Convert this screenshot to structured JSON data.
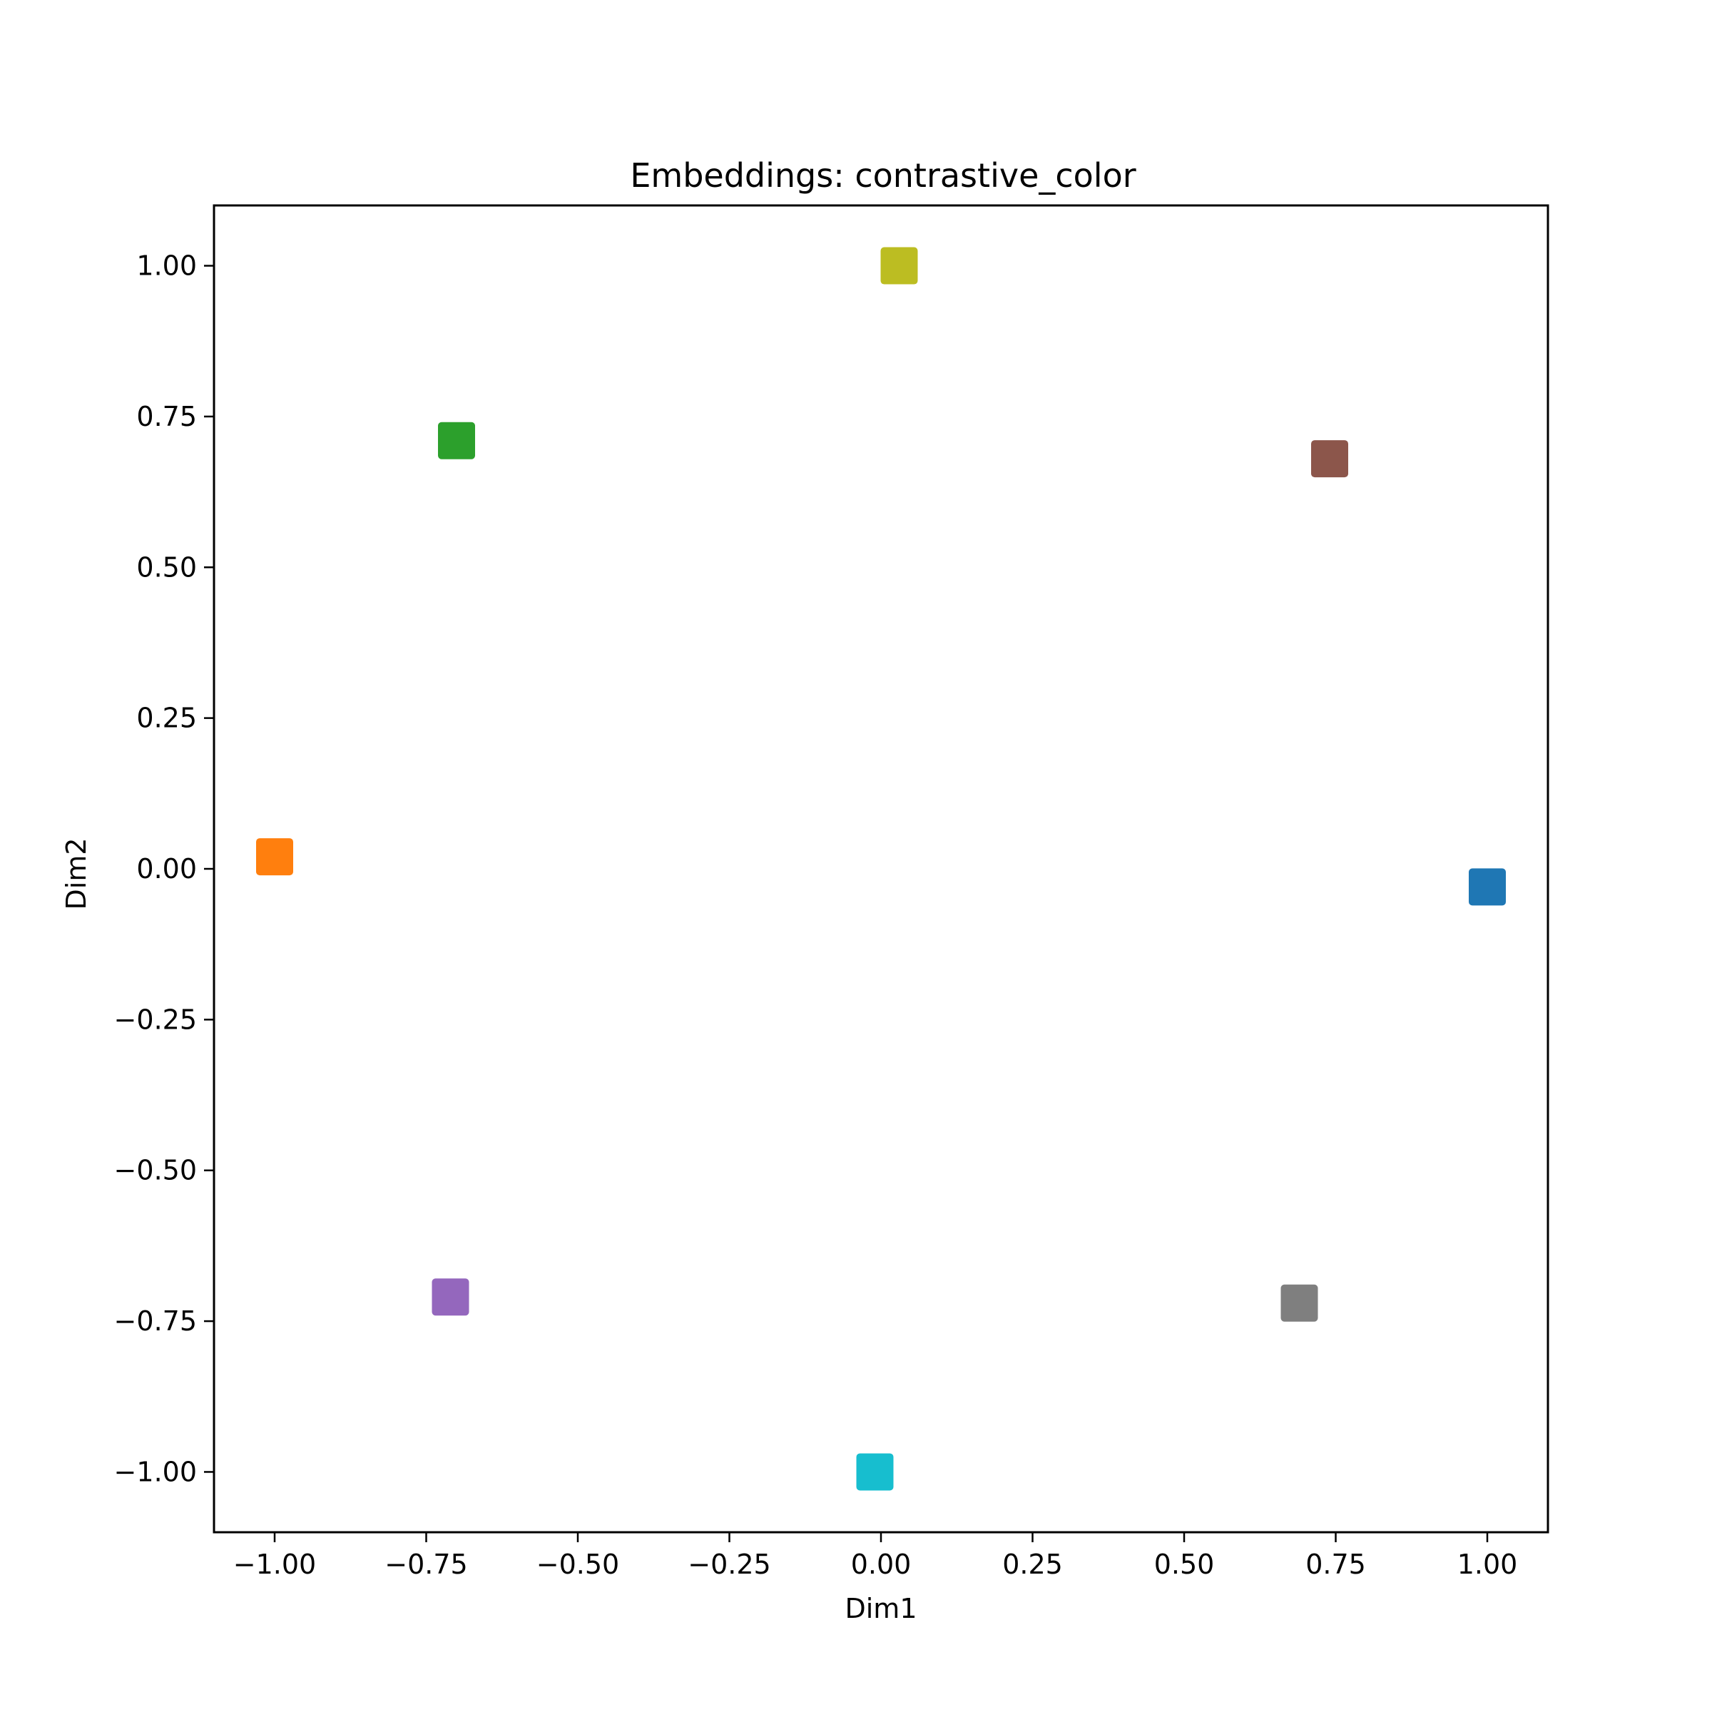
{
  "chart_data": {
    "type": "scatter",
    "title": "Embeddings: contrastive_color",
    "xlabel": "Dim1",
    "ylabel": "Dim2",
    "xlim": [
      -1.1,
      1.1
    ],
    "ylim": [
      -1.1,
      1.1
    ],
    "xticks": [
      -1.0,
      -0.75,
      -0.5,
      -0.25,
      0.0,
      0.25,
      0.5,
      0.75,
      1.0
    ],
    "xtick_labels": [
      "−1.00",
      "−0.75",
      "−0.50",
      "−0.25",
      "0.00",
      "0.25",
      "0.50",
      "0.75",
      "1.00"
    ],
    "yticks": [
      -1.0,
      -0.75,
      -0.5,
      -0.25,
      0.0,
      0.25,
      0.5,
      0.75,
      1.0
    ],
    "ytick_labels": [
      "−1.00",
      "−0.75",
      "−0.50",
      "−0.25",
      "0.00",
      "0.25",
      "0.50",
      "0.75",
      "1.00"
    ],
    "grid": false,
    "legend": "none",
    "marker": "square",
    "points": [
      {
        "x": 1.0,
        "y": -0.03,
        "color": "#1f77b4"
      },
      {
        "x": -1.0,
        "y": 0.02,
        "color": "#ff7f0e"
      },
      {
        "x": -0.7,
        "y": 0.71,
        "color": "#2ca02c"
      },
      {
        "x": -0.71,
        "y": -0.71,
        "color": "#9467bd"
      },
      {
        "x": 0.74,
        "y": 0.68,
        "color": "#8c564b"
      },
      {
        "x": 0.69,
        "y": -0.72,
        "color": "#7f7f7f"
      },
      {
        "x": 0.03,
        "y": 1.0,
        "color": "#bcbd22"
      },
      {
        "x": -0.01,
        "y": -1.0,
        "color": "#17becf"
      }
    ]
  }
}
